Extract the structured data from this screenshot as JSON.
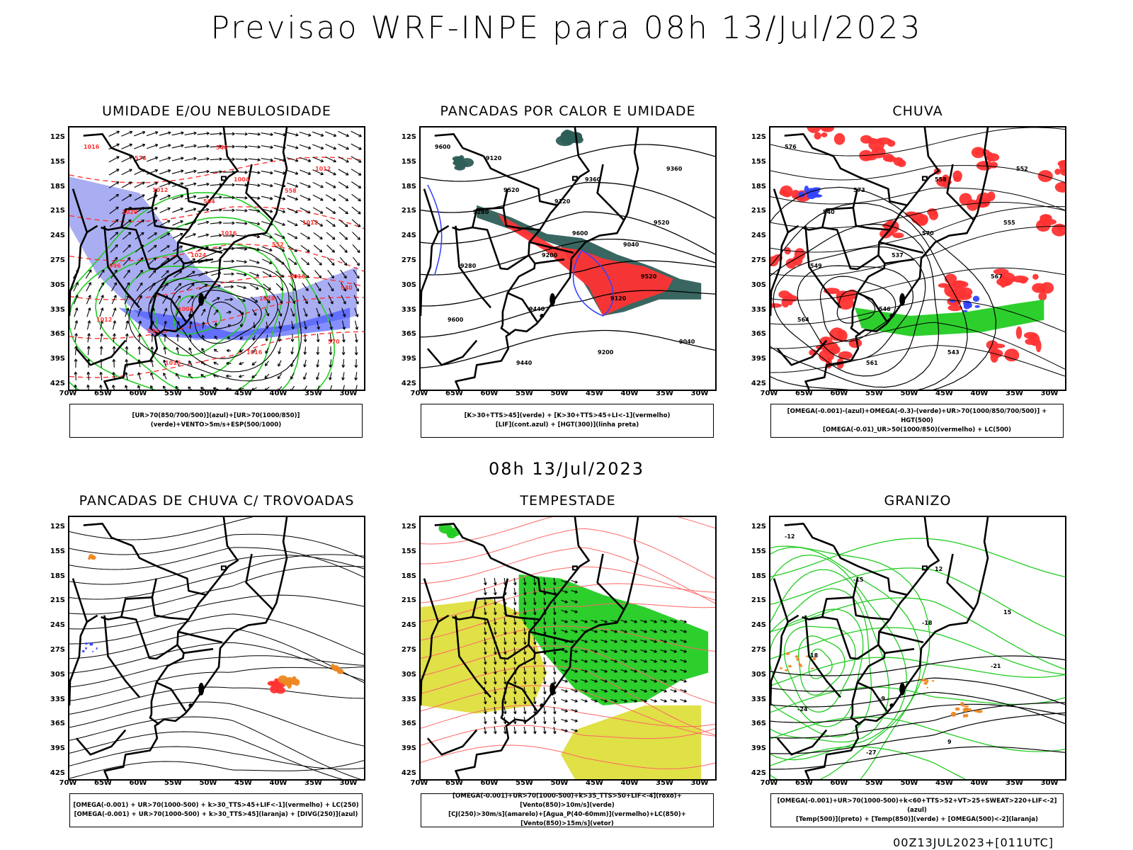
{
  "header": {
    "title": "Previsao WRF-INPE  para 08h 13/Jul/2023"
  },
  "middle": {
    "title": "08h 13/Jul/2023"
  },
  "footer": {
    "run": "00Z13JUL2023+[011UTC]"
  },
  "axes": {
    "lat_labels": [
      "12S",
      "15S",
      "18S",
      "21S",
      "24S",
      "27S",
      "30S",
      "33S",
      "36S",
      "39S",
      "42S"
    ],
    "lon_labels": [
      "70W",
      "65W",
      "60W",
      "55W",
      "50W",
      "45W",
      "40W",
      "35W",
      "30W"
    ]
  },
  "colors": {
    "green": "#22cc22",
    "blue": "#3344ff",
    "red": "#ff3333",
    "orange": "#ee8822",
    "yellow": "#dddd33",
    "dkgreen": "#0f7a0f",
    "teal": "#2e5e58",
    "lavender": "#9aa0f0"
  },
  "panels": [
    {
      "id": "umidade",
      "title": "UMIDADE E/OU NEBULOSIDADE",
      "legend": [
        "[UR>70(850/700/500)](azul)+[UR>70(1000/850)](verde)+VENTO>5m/s+ESP(500/1000)"
      ],
      "contour_labels": [
        "1016",
        "1012",
        "1016",
        "1016",
        "1012",
        "1016",
        "1004",
        "1012",
        "996",
        "1008",
        "1016",
        "1012",
        "1020",
        "1024",
        "1028",
        "570",
        "576",
        "564",
        "552",
        "540",
        "534",
        "546",
        "558"
      ]
    },
    {
      "id": "pancadas",
      "title": "PANCADAS POR CALOR E UMIDADE",
      "legend": [
        "[K>30+TTS>45](verde) + [K>30+TTS>45+LI<-1](vermelho)",
        "[LIF](cont.azul) + [HGT(300)](linha preta)"
      ],
      "contour_labels": [
        "9600",
        "9520",
        "9600",
        "9520",
        "9600",
        "9440",
        "9360",
        "9520",
        "9280",
        "9440",
        "9200",
        "9360",
        "9280",
        "9200",
        "9120",
        "9040",
        "9120",
        "9120",
        "9040"
      ]
    },
    {
      "id": "chuva",
      "title": "CHUVA",
      "legend": [
        "[OMEGA(-0.001)-(azul)+OMEGA(-0.3)-(verde)+UR>70(1000/850/700/500)] + HGT(500)",
        "[OMEGA(-0.01)_UR>50(1000/850)(vermelho) + LC(500)"
      ],
      "contour_labels": [
        "576",
        "573",
        "570",
        "567",
        "564",
        "561",
        "558",
        "555",
        "549",
        "546",
        "543",
        "552",
        "540",
        "537"
      ]
    },
    {
      "id": "trovoadas",
      "title": "PANCADAS DE CHUVA C/ TROVOADAS",
      "legend": [
        "[OMEGA(-0.001) + UR>70(1000-500) + k>30_TTS>45+LIF<-1](vermelho) + LC(250)",
        "[OMEGA(-0.001) + UR>70(1000-500) + k>30_TTS>45](laranja) + [DIVG(250)](azul)"
      ],
      "contour_labels": []
    },
    {
      "id": "tempestade",
      "title": "TEMPESTADE",
      "legend": [
        "[OMEGA(-0.001)+UR>70(1000-500)+k>35_TTS>50+LIF<-4](roxo)+[Vento(850)>10m/s](verde)",
        "[CJ(250)>30m/s](amarelo)+[Agua_P(40-60mm)](vermelho)+LC(850)+[Vento(850)>15m/s](vetor)"
      ],
      "contour_labels": []
    },
    {
      "id": "granizo",
      "title": "GRANIZO",
      "legend": [
        "[OMEGA(-0.001)+UR>70(1000-500)+k<60+TTS>52+VT>25+SWEAT>220+LIF<-2](azul)",
        "[Temp(500)](preto) + [Temp(850)](verde) + [OMEGA(500)<-2](laranja)"
      ],
      "contour_labels": [
        "-12",
        "-15",
        "-18",
        "-21",
        "-24",
        "-27",
        "12",
        "15",
        "18",
        "-9",
        "9"
      ]
    }
  ]
}
